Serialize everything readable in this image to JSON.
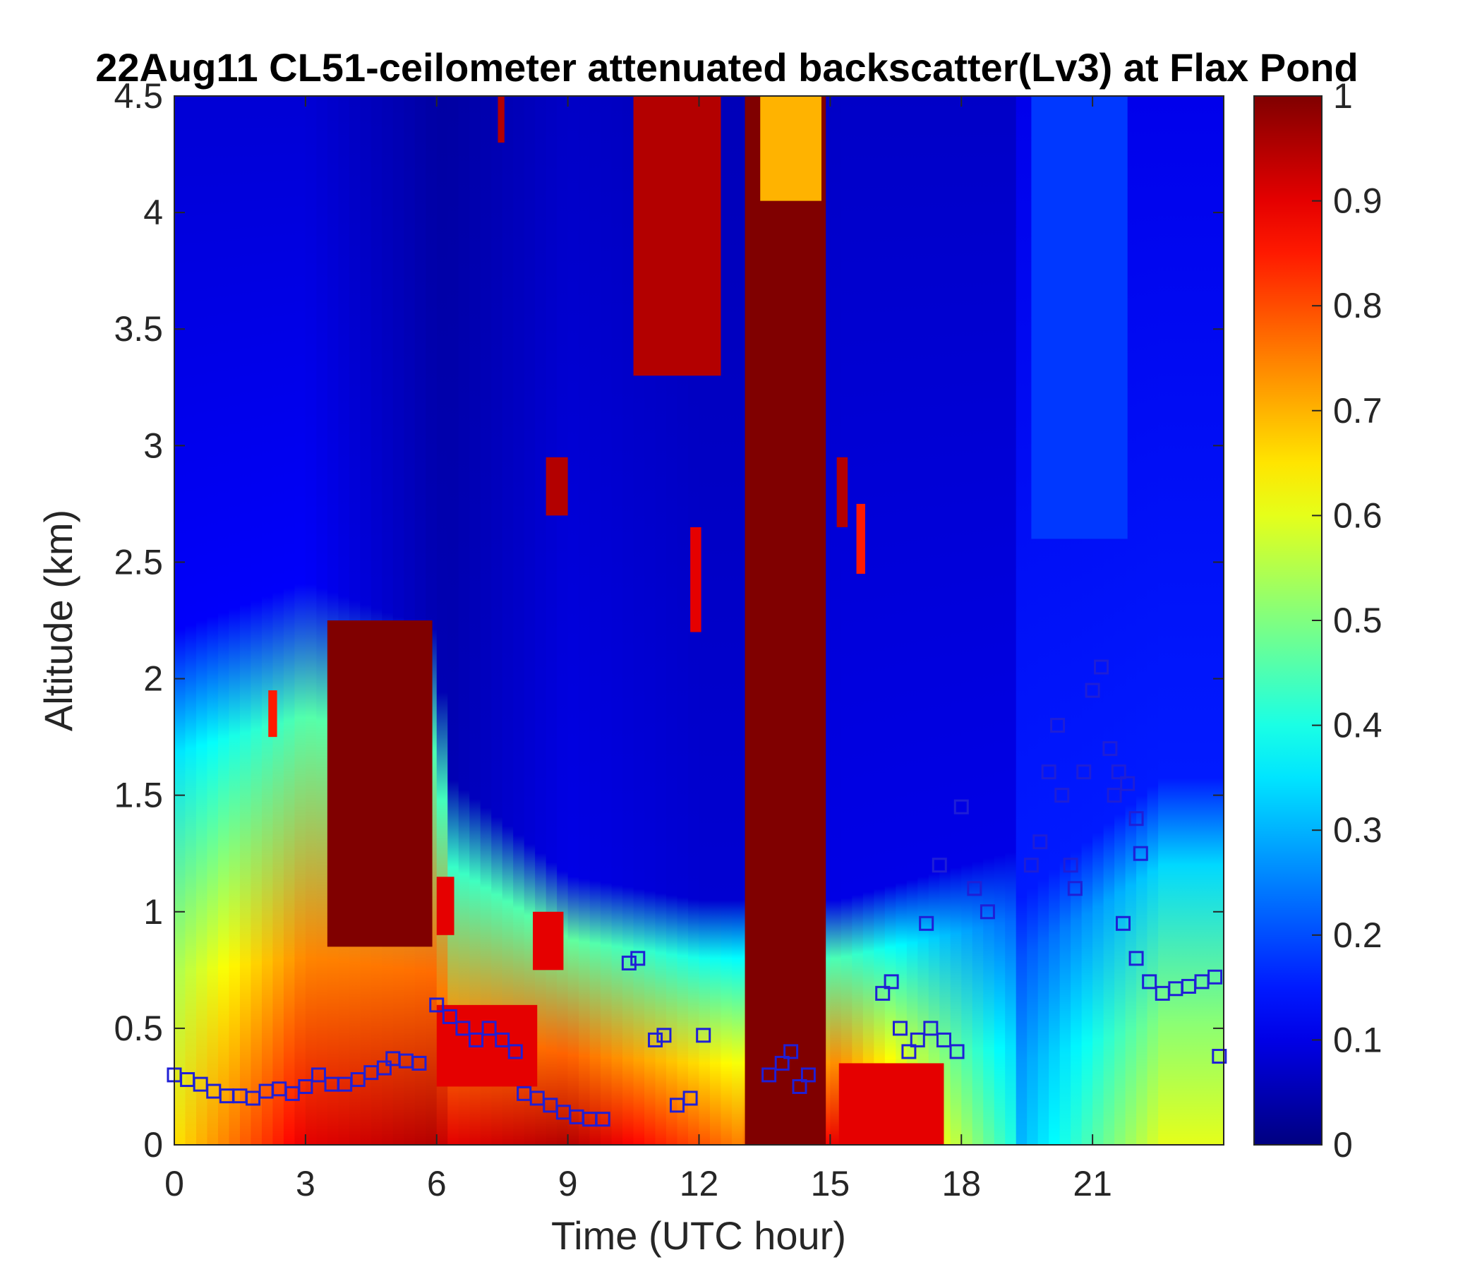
{
  "chart_data": {
    "type": "heatmap",
    "title": "22Aug11 CL51-ceilometer attenuated backscatter(Lv3) at Flax Pond",
    "xlabel": "Time (UTC hour)",
    "ylabel": "Altitude (km)",
    "xlim": [
      0,
      24
    ],
    "ylim": [
      0,
      4.5
    ],
    "x_ticks": [
      0,
      3,
      6,
      9,
      12,
      15,
      18,
      21
    ],
    "x_tick_labels": [
      "0",
      "3",
      "6",
      "9",
      "12",
      "15",
      "18",
      "21"
    ],
    "y_ticks": [
      0,
      0.5,
      1,
      1.5,
      2,
      2.5,
      3,
      3.5,
      4,
      4.5
    ],
    "y_tick_labels": [
      "0",
      "0.5",
      "1",
      "1.5",
      "2",
      "2.5",
      "3",
      "3.5",
      "4",
      "4.5"
    ],
    "colorbar": {
      "colormap": "jet",
      "range": [
        0,
        1
      ],
      "ticks": [
        0,
        0.1,
        0.2,
        0.3,
        0.4,
        0.5,
        0.6,
        0.7,
        0.8,
        0.9,
        1
      ],
      "tick_labels": [
        "0",
        "0.1",
        "0.2",
        "0.3",
        "0.4",
        "0.5",
        "0.6",
        "0.7",
        "0.8",
        "0.9",
        "1"
      ]
    },
    "background_profile": {
      "x": [
        0,
        3,
        6,
        6.3,
        9,
        12,
        12.9,
        15.2,
        19.2,
        19.3,
        22.6,
        24
      ],
      "surface_value": [
        0.65,
        0.9,
        0.95,
        0.9,
        0.95,
        0.8,
        0.75,
        0.9,
        0.4,
        0.3,
        0.6,
        0.6
      ],
      "upper_value": [
        0.12,
        0.12,
        0.05,
        0.05,
        0.1,
        0.08,
        0.08,
        0.1,
        0.1,
        0.15,
        0.15,
        0.15
      ],
      "layer_top_km": [
        2.1,
        2.3,
        2.1,
        1.5,
        1.1,
        1.0,
        1.0,
        1.0,
        1.2,
        1.0,
        1.5,
        1.5
      ]
    },
    "features": [
      {
        "x0": 13.05,
        "x1": 14.9,
        "y0": 0.0,
        "y1": 4.5,
        "value": 1.0
      },
      {
        "x0": 3.5,
        "x1": 5.9,
        "y0": 0.85,
        "y1": 2.25,
        "value": 1.0
      },
      {
        "x0": 2.15,
        "x1": 2.35,
        "y0": 1.75,
        "y1": 1.95,
        "value": 0.85
      },
      {
        "x0": 6.0,
        "x1": 8.3,
        "y0": 0.25,
        "y1": 0.6,
        "value": 0.9
      },
      {
        "x0": 6.0,
        "x1": 6.4,
        "y0": 0.9,
        "y1": 1.15,
        "value": 0.9
      },
      {
        "x0": 8.2,
        "x1": 8.9,
        "y0": 0.75,
        "y1": 1.0,
        "value": 0.9
      },
      {
        "x0": 8.5,
        "x1": 9.0,
        "y0": 2.7,
        "y1": 2.95,
        "value": 0.95
      },
      {
        "x0": 7.4,
        "x1": 7.55,
        "y0": 4.3,
        "y1": 4.5,
        "value": 0.95
      },
      {
        "x0": 10.5,
        "x1": 12.5,
        "y0": 3.3,
        "y1": 4.5,
        "value": 0.95
      },
      {
        "x0": 11.8,
        "x1": 12.05,
        "y0": 2.2,
        "y1": 2.65,
        "value": 0.9
      },
      {
        "x0": 15.15,
        "x1": 15.4,
        "y0": 2.65,
        "y1": 2.95,
        "value": 0.95
      },
      {
        "x0": 15.6,
        "x1": 15.8,
        "y0": 2.45,
        "y1": 2.75,
        "value": 0.85
      },
      {
        "x0": 15.2,
        "x1": 17.6,
        "y0": 0.0,
        "y1": 0.35,
        "value": 0.9
      },
      {
        "x0": 13.4,
        "x1": 14.8,
        "y0": 4.05,
        "y1": 4.5,
        "value": 0.7
      },
      {
        "x0": 19.6,
        "x1": 21.8,
        "y0": 2.6,
        "y1": 4.5,
        "value": 0.18
      }
    ],
    "series": [
      {
        "marker": "square",
        "color": "#1f1fd6",
        "x": [
          0,
          0.3,
          0.6,
          0.9,
          1.2,
          1.5,
          1.8,
          2.1,
          2.4,
          2.7,
          3.0,
          3.3,
          3.6,
          3.9,
          4.2,
          4.5,
          4.8,
          5.0,
          5.3,
          5.6,
          6.0,
          6.3,
          6.6,
          6.9,
          7.2,
          7.5,
          7.8,
          8.0,
          8.3,
          8.6,
          8.9,
          9.2,
          9.5,
          9.8,
          10.4,
          10.6,
          11.0,
          11.2,
          11.5,
          11.8,
          12.1,
          13.6,
          13.9,
          14.1,
          14.3,
          14.5,
          16.2,
          16.4,
          16.6,
          16.8,
          17.0,
          17.3,
          17.6,
          17.9,
          17.2,
          17.5,
          18.0,
          18.3,
          18.6,
          21.7,
          22.0,
          22.3,
          22.6,
          22.9,
          23.2,
          23.5,
          23.8,
          23.9
        ],
        "y": [
          0.3,
          0.28,
          0.26,
          0.23,
          0.21,
          0.21,
          0.2,
          0.23,
          0.24,
          0.22,
          0.25,
          0.3,
          0.26,
          0.26,
          0.28,
          0.31,
          0.33,
          0.37,
          0.36,
          0.35,
          0.6,
          0.55,
          0.5,
          0.45,
          0.5,
          0.45,
          0.4,
          0.22,
          0.2,
          0.17,
          0.14,
          0.12,
          0.11,
          0.11,
          0.78,
          0.8,
          0.45,
          0.47,
          0.17,
          0.2,
          0.47,
          0.3,
          0.35,
          0.4,
          0.25,
          0.3,
          0.65,
          0.7,
          0.5,
          0.4,
          0.45,
          0.5,
          0.45,
          0.4,
          0.95,
          1.2,
          1.45,
          1.1,
          1.0,
          0.95,
          0.8,
          0.7,
          0.65,
          0.67,
          0.68,
          0.7,
          0.72,
          0.38
        ]
      },
      {
        "marker": "square",
        "color": "#1f1fd6",
        "x": [
          19.6,
          19.8,
          20.0,
          20.2,
          20.3,
          20.5,
          20.6,
          20.8,
          21.0,
          21.2,
          21.4,
          21.5,
          21.6,
          21.8,
          22.0,
          22.1
        ],
        "y": [
          1.2,
          1.3,
          1.6,
          1.8,
          1.5,
          1.2,
          1.1,
          1.6,
          1.95,
          2.05,
          1.7,
          1.5,
          1.6,
          1.55,
          1.4,
          1.25
        ]
      }
    ]
  }
}
